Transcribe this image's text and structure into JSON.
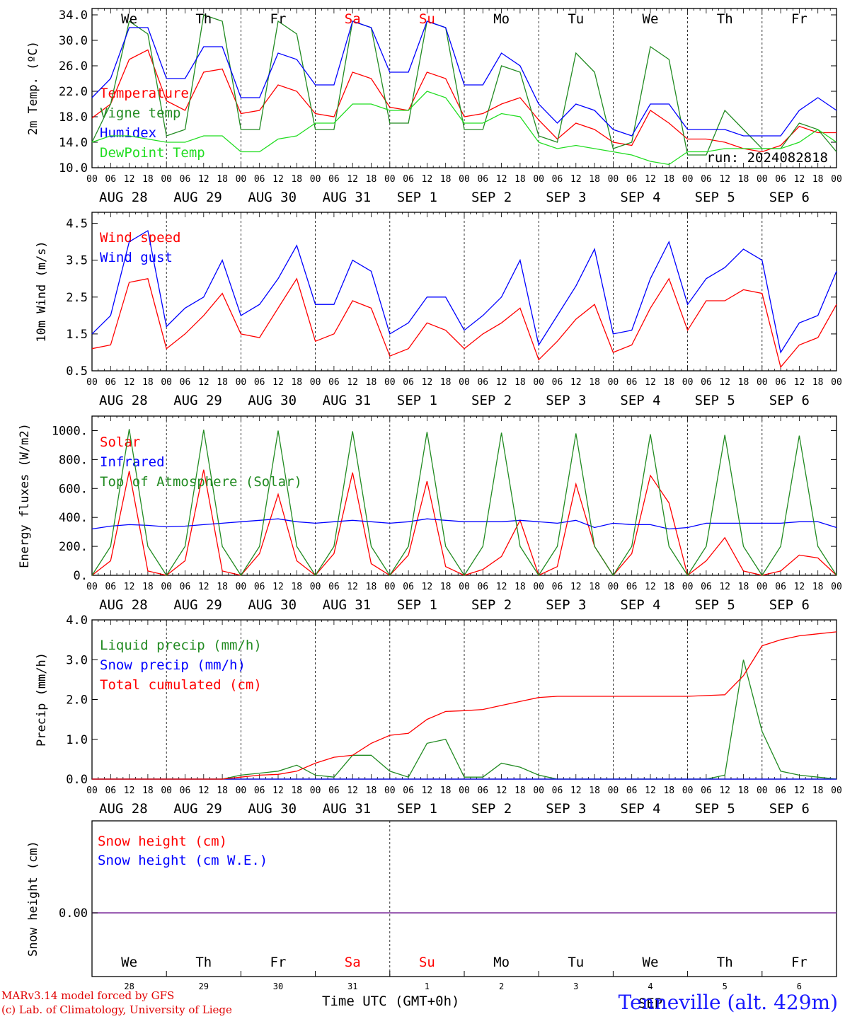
{
  "days": [
    "We",
    "Th",
    "Fr",
    "Sa",
    "Su",
    "Mo",
    "Tu",
    "We",
    "Th",
    "Fr"
  ],
  "weekend_flags": [
    false,
    false,
    false,
    true,
    true,
    false,
    false,
    false,
    false,
    false
  ],
  "dates": [
    "AUG 28",
    "AUG 29",
    "AUG 30",
    "AUG 31",
    "SEP  1",
    "SEP  2",
    "SEP  3",
    "SEP  4",
    "SEP  5",
    "SEP  6"
  ],
  "bottom_day_numbers": [
    "28",
    "29",
    "30",
    "31",
    "1",
    "2",
    "3",
    "4",
    "5",
    "6"
  ],
  "hour_ticks": [
    "00",
    "06",
    "12",
    "18"
  ],
  "run_label": "run: 2024082818",
  "colors": {
    "red": "#ff0000",
    "green": "#228b22",
    "blue": "#0000ff",
    "lightgreen": "#22dd22",
    "purple": "#7a2a9a"
  },
  "chart_data": [
    {
      "type": "line",
      "ylabel": "2m Temp. (ºC)",
      "ylim": [
        10,
        35
      ],
      "yticks": [
        "10.0",
        "14.0",
        "18.0",
        "22.0",
        "26.0",
        "30.0",
        "34.0"
      ],
      "x": "hours since AUG 28 00 UTC, step 6",
      "series": [
        {
          "name": "Temperature",
          "color": "red",
          "values": [
            17.8,
            20,
            27,
            28.5,
            20.5,
            19,
            25,
            25.5,
            18.5,
            19,
            23,
            22,
            18.5,
            18,
            25,
            24,
            19.5,
            19,
            25,
            24,
            18,
            18.5,
            20,
            21,
            17.5,
            14.5,
            17,
            16,
            14,
            13.5,
            19,
            17,
            14.5,
            14.5,
            14,
            13,
            12.5,
            13.5,
            16.5,
            15.5,
            15.5
          ]
        },
        {
          "name": "Vigne temp",
          "color": "green",
          "values": [
            14,
            20,
            33,
            31,
            15,
            16,
            34,
            33,
            16,
            16,
            33,
            31,
            16,
            16,
            33,
            32,
            17,
            17,
            33,
            32,
            16,
            16,
            26,
            25,
            15,
            14,
            28,
            25,
            13,
            14,
            29,
            27,
            12,
            12,
            19,
            16,
            13,
            13,
            17,
            16,
            12.5
          ]
        },
        {
          "name": "Humidex",
          "color": "blue",
          "values": [
            21,
            24,
            32,
            32,
            24,
            24,
            29,
            29,
            21,
            21,
            28,
            27,
            23,
            23,
            33,
            32,
            25,
            25,
            33,
            32,
            23,
            23,
            28,
            26,
            20,
            17,
            20,
            19,
            16,
            15,
            20,
            20,
            16,
            16,
            16,
            15,
            15,
            15,
            19,
            21,
            19
          ]
        },
        {
          "name": "DewPoint Temp",
          "color": "lightgreen",
          "values": [
            14,
            15,
            15,
            14.5,
            14,
            14,
            15,
            15,
            12.5,
            12.5,
            14.5,
            15,
            17,
            17,
            20,
            20,
            19,
            19,
            22,
            21,
            17,
            17,
            18.5,
            18,
            14,
            13,
            13.5,
            13,
            12.5,
            12,
            11,
            10.5,
            12.5,
            12.5,
            13,
            13,
            13,
            13,
            14,
            16,
            14
          ]
        }
      ]
    },
    {
      "type": "line",
      "ylabel": "10m Wind (m/s)",
      "ylim": [
        0.5,
        4.8
      ],
      "yticks": [
        "0.5",
        "1.5",
        "2.5",
        "3.5",
        "4.5"
      ],
      "series": [
        {
          "name": "Wind speed",
          "color": "red",
          "values": [
            1.1,
            1.2,
            2.9,
            3,
            1.1,
            1.5,
            2,
            2.6,
            1.5,
            1.4,
            2.2,
            3,
            1.3,
            1.5,
            2.4,
            2.2,
            0.9,
            1.1,
            1.8,
            1.6,
            1.1,
            1.5,
            1.8,
            2.2,
            0.8,
            1.3,
            1.9,
            2.3,
            1,
            1.2,
            2.2,
            3,
            1.6,
            2.4,
            2.4,
            2.7,
            2.6,
            0.6,
            1.2,
            1.4,
            2.3
          ]
        },
        {
          "name": "Wind gust",
          "color": "blue",
          "values": [
            1.5,
            2,
            4,
            4.3,
            1.7,
            2.2,
            2.5,
            3.5,
            2,
            2.3,
            3,
            3.9,
            2.3,
            2.3,
            3.5,
            3.2,
            1.5,
            1.8,
            2.5,
            2.5,
            1.6,
            2,
            2.5,
            3.5,
            1.2,
            2,
            2.8,
            3.8,
            1.5,
            1.6,
            3,
            4,
            2.3,
            3,
            3.3,
            3.8,
            3.5,
            1,
            1.8,
            2,
            3.2
          ]
        }
      ]
    },
    {
      "type": "line",
      "ylabel": "Energy fluxes (W/m2)",
      "ylim": [
        0,
        1100
      ],
      "yticks": [
        "0.",
        "200.",
        "400.",
        "600.",
        "800.",
        "1000."
      ],
      "series": [
        {
          "name": "Solar",
          "color": "red",
          "values": [
            0,
            100,
            720,
            30,
            0,
            100,
            730,
            30,
            0,
            150,
            560,
            100,
            0,
            150,
            710,
            80,
            0,
            140,
            650,
            60,
            0,
            40,
            130,
            380,
            0,
            60,
            630,
            200,
            0,
            150,
            690,
            500,
            0,
            100,
            260,
            30,
            0,
            30,
            140,
            120,
            0
          ]
        },
        {
          "name": "Infrared",
          "color": "blue",
          "values": [
            320,
            340,
            350,
            345,
            335,
            340,
            350,
            360,
            370,
            380,
            390,
            370,
            360,
            370,
            380,
            370,
            360,
            370,
            390,
            380,
            370,
            370,
            370,
            380,
            370,
            360,
            380,
            330,
            360,
            350,
            350,
            320,
            330,
            360,
            360,
            360,
            360,
            360,
            370,
            370,
            330
          ]
        },
        {
          "name": "Top of Atmosphere (Solar)",
          "color": "green",
          "values": [
            0,
            200,
            1010,
            200,
            0,
            200,
            1005,
            200,
            0,
            200,
            1000,
            200,
            0,
            200,
            995,
            200,
            0,
            200,
            990,
            200,
            0,
            200,
            985,
            200,
            0,
            200,
            980,
            200,
            0,
            200,
            975,
            200,
            0,
            200,
            970,
            200,
            0,
            200,
            965,
            200,
            0
          ]
        }
      ]
    },
    {
      "type": "line",
      "ylabel": "Precip (mm/h)",
      "ylim": [
        0,
        4
      ],
      "yticks": [
        "0.0",
        "1.0",
        "2.0",
        "3.0",
        "4.0"
      ],
      "series": [
        {
          "name": "Liquid precip (mm/h)",
          "color": "green",
          "values": [
            0,
            0,
            0,
            0,
            0,
            0,
            0,
            0,
            0.1,
            0.15,
            0.2,
            0.35,
            0.1,
            0.05,
            0.6,
            0.6,
            0.2,
            0.05,
            0.9,
            1,
            0.05,
            0.05,
            0.4,
            0.3,
            0.1,
            0,
            0,
            0,
            0,
            0,
            0,
            0,
            0,
            0,
            0.1,
            3,
            1.2,
            0.2,
            0.1,
            0.05,
            0
          ]
        },
        {
          "name": "Snow precip (mm/h)",
          "color": "blue",
          "values": [
            0,
            0,
            0,
            0,
            0,
            0,
            0,
            0,
            0,
            0,
            0,
            0,
            0,
            0,
            0,
            0,
            0,
            0,
            0,
            0,
            0,
            0,
            0,
            0,
            0,
            0,
            0,
            0,
            0,
            0,
            0,
            0,
            0,
            0,
            0,
            0,
            0,
            0,
            0,
            0,
            0
          ]
        },
        {
          "name": "Total cumulated (cm)",
          "color": "red",
          "values": [
            0,
            0,
            0,
            0,
            0,
            0,
            0,
            0,
            0.05,
            0.1,
            0.12,
            0.2,
            0.4,
            0.55,
            0.6,
            0.9,
            1.1,
            1.15,
            1.5,
            1.7,
            1.72,
            1.75,
            1.85,
            1.95,
            2.05,
            2.08,
            2.08,
            2.08,
            2.08,
            2.08,
            2.08,
            2.08,
            2.08,
            2.1,
            2.12,
            2.6,
            3.35,
            3.5,
            3.6,
            3.65,
            3.7
          ]
        }
      ]
    },
    {
      "type": "line",
      "ylabel": "Snow height (cm)",
      "yticks": [
        "0.00"
      ],
      "series": [
        {
          "name": "Snow height (cm)",
          "color": "red",
          "values": [
            0,
            0
          ]
        },
        {
          "name": "Snow height (cm W.E.)",
          "color": "blue",
          "values": [
            0,
            0
          ]
        }
      ]
    }
  ],
  "footer": {
    "xlabel": "Time UTC (GMT+0h)",
    "credit_line1": "MARv3.14 model forced by GFS",
    "credit_line2": "(c) Lab. of Climatology, University of Liege",
    "station": "Tenneville (alt. 429m)",
    "month_label": "SEP"
  }
}
